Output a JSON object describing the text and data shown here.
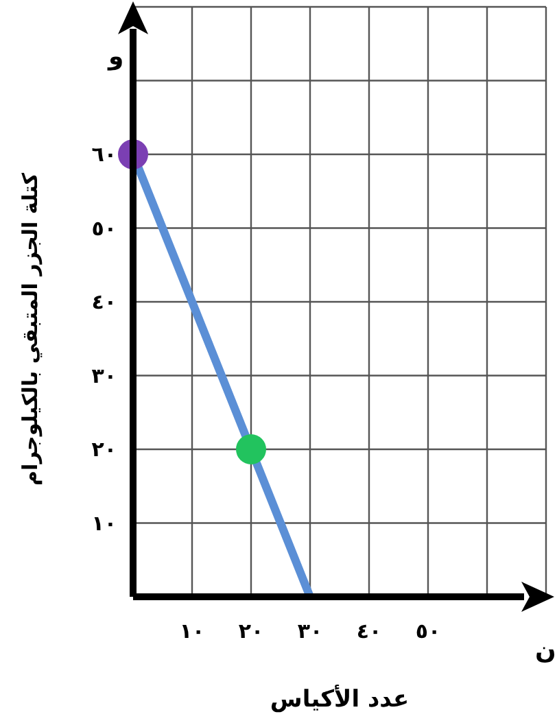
{
  "chart_data": {
    "type": "line",
    "xlabel": "عدد الأكياس",
    "ylabel": "كتلة الجزر المتبقي بالكيلوجرام",
    "annotations": [
      "و",
      "ن"
    ],
    "xlim": [
      0,
      70
    ],
    "ylim": [
      0,
      80
    ],
    "xticks": [
      {
        "value": 10,
        "label": "١٠"
      },
      {
        "value": 20,
        "label": "٢٠"
      },
      {
        "value": 30,
        "label": "٣٠"
      },
      {
        "value": 40,
        "label": "٤٠"
      },
      {
        "value": 50,
        "label": "٥٠"
      }
    ],
    "yticks": [
      {
        "value": 10,
        "label": "١٠"
      },
      {
        "value": 20,
        "label": "٢٠"
      },
      {
        "value": 30,
        "label": "٣٠"
      },
      {
        "value": 40,
        "label": "٤٠"
      },
      {
        "value": 50,
        "label": "٥٠"
      },
      {
        "value": 60,
        "label": "٦٠"
      }
    ],
    "grid": true,
    "series": [
      {
        "type": "line",
        "color": "#5b8fd6",
        "x": [
          0,
          30
        ],
        "values": [
          60,
          0
        ],
        "marker": "none"
      },
      {
        "type": "scatter",
        "colors": [
          "#7b3fb3",
          "#22c35e"
        ],
        "x": [
          0,
          20
        ],
        "values": [
          60,
          20
        ],
        "marker": "circle"
      }
    ]
  }
}
